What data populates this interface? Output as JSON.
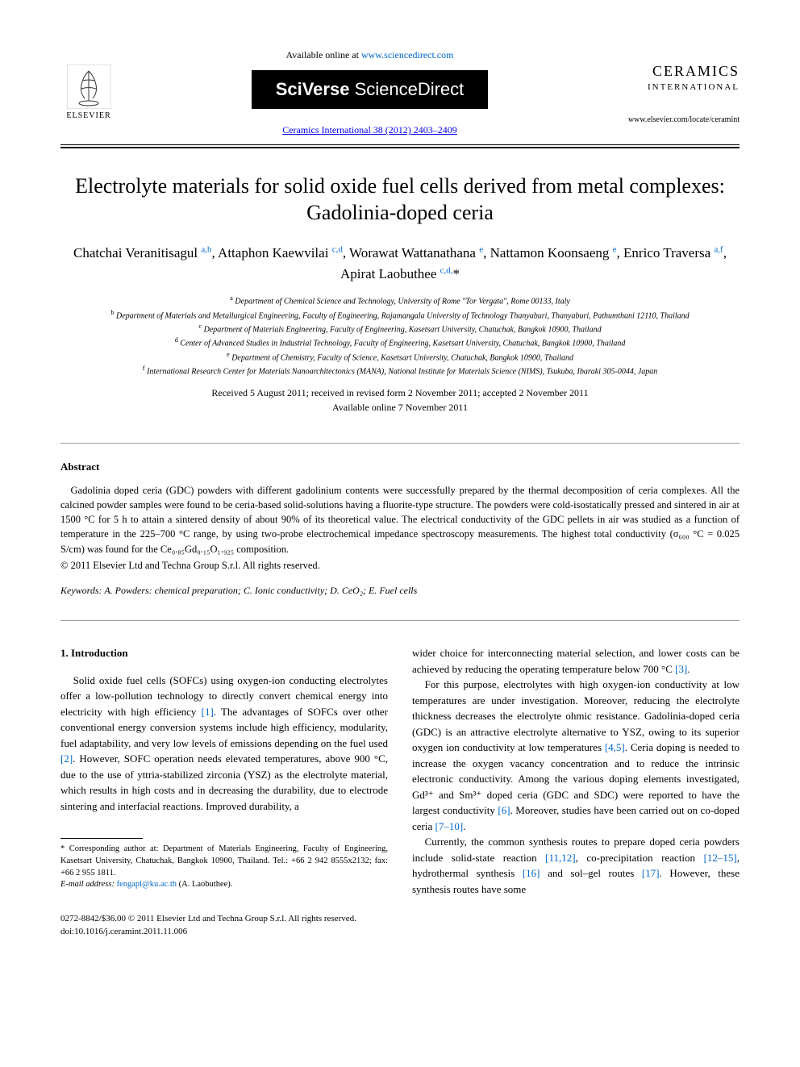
{
  "header": {
    "available_text": "Available online at ",
    "available_url": "www.sciencedirect.com",
    "platform_bold": "SciVerse",
    "platform_light": " ScienceDirect",
    "journal_ref": "Ceramics International 38 (2012) 2403–2409",
    "publisher_name": "ELSEVIER",
    "journal_name": "CERAMICS",
    "journal_subtitle": "INTERNATIONAL",
    "journal_url": "www.elsevier.com/locate/ceramint"
  },
  "title": "Electrolyte materials for solid oxide fuel cells derived from metal complexes: Gadolinia-doped ceria",
  "authors_html": "Chatchai Veranitisagul <sup>a,b</sup>, Attaphon Kaewvilai <sup>c,d</sup>, Worawat Wattanathana <sup>e</sup>, Nattamon Koonsaeng <sup>e</sup>, Enrico Traversa <sup>a,f</sup>, Apirat Laobuthee <sup>c,d,</sup>*",
  "affiliations": [
    {
      "sup": "a",
      "text": "Department of Chemical Science and Technology, University of Rome \"Tor Vergata\", Rome 00133, Italy"
    },
    {
      "sup": "b",
      "text": "Department of Materials and Metallurgical Engineering, Faculty of Engineering, Rajamangala University of Technology Thanyaburi, Thanyaburi, Pathumthani 12110, Thailand"
    },
    {
      "sup": "c",
      "text": "Department of Materials Engineering, Faculty of Engineering, Kasetsart University, Chatuchak, Bangkok 10900, Thailand"
    },
    {
      "sup": "d",
      "text": "Center of Advanced Studies in Industrial Technology, Faculty of Engineering, Kasetsart University, Chatuchak, Bangkok 10900, Thailand"
    },
    {
      "sup": "e",
      "text": "Department of Chemistry, Faculty of Science, Kasetsart University, Chatuchak, Bangkok 10900, Thailand"
    },
    {
      "sup": "f",
      "text": "International Research Center for Materials Nanoarchitectonics (MANA), National Institute for Materials Science (NIMS), Tsukuba, Ibaraki 305-0044, Japan"
    }
  ],
  "dates": {
    "received": "Received 5 August 2011; received in revised form 2 November 2011; accepted 2 November 2011",
    "online": "Available online 7 November 2011"
  },
  "abstract": {
    "heading": "Abstract",
    "body": "Gadolinia doped ceria (GDC) powders with different gadolinium contents were successfully prepared by the thermal decomposition of ceria complexes. All the calcined powder samples were found to be ceria-based solid-solutions having a fluorite-type structure. The powders were cold-isostatically pressed and sintered in air at 1500 °C for 5 h to attain a sintered density of about 90% of its theoretical value. The electrical conductivity of the GDC pellets in air was studied as a function of temperature in the 225–700 °C range, by using two-probe electrochemical impedance spectroscopy measurements. The highest total conductivity (σ₆₀₀ °C = 0.025 S/cm) was found for the Ce₀.₈₅Gd₀.₁₅O₁.₉₂₅ composition.",
    "copyright": "© 2011 Elsevier Ltd and Techna Group S.r.l. All rights reserved."
  },
  "keywords": {
    "label": "Keywords:",
    "text": " A. Powders: chemical preparation; C. Ionic conductivity; D. CeO₂; E. Fuel cells"
  },
  "section1": {
    "heading": "1. Introduction",
    "para1_pre": "Solid oxide fuel cells (SOFCs) using oxygen-ion conducting electrolytes offer a low-pollution technology to directly convert chemical energy into electricity with high efficiency ",
    "ref1": "[1]",
    "para1_mid": ". The advantages of SOFCs over other conventional energy conversion systems include high efficiency, modularity, fuel adaptability, and very low levels of emissions depending on the fuel used ",
    "ref2": "[2]",
    "para1_post": ". However, SOFC operation needs elevated temperatures, above 900 °C, due to the use of yttria-stabilized zirconia (YSZ) as the electrolyte material, which results in high costs and in decreasing the durability, due to electrode sintering and interfacial reactions. Improved durability, a",
    "col2_cont": "wider choice for interconnecting material selection, and lower costs can be achieved by reducing the operating temperature below 700 °C ",
    "ref3": "[3]",
    "col2_cont2": ".",
    "para2_pre": "For this purpose, electrolytes with high oxygen-ion conductivity at low temperatures are under investigation. Moreover, reducing the electrolyte thickness decreases the electrolyte ohmic resistance. Gadolinia-doped ceria (GDC) is an attractive electrolyte alternative to YSZ, owing to its superior oxygen ion conductivity at low temperatures ",
    "ref45": "[4,5]",
    "para2_mid": ". Ceria doping is needed to increase the oxygen vacancy concentration and to reduce the intrinsic electronic conductivity. Among the various doping elements investigated, Gd³⁺ and Sm³⁺ doped ceria (GDC and SDC) were reported to have the largest conductivity ",
    "ref6": "[6]",
    "para2_mid2": ". Moreover, studies have been carried out on co-doped ceria ",
    "ref710": "[7–10]",
    "para2_post": ".",
    "para3_pre": "Currently, the common synthesis routes to prepare doped ceria powders include solid-state reaction ",
    "ref1112": "[11,12]",
    "para3_mid1": ", co-precipitation reaction ",
    "ref1215": "[12–15]",
    "para3_mid2": ", hydrothermal synthesis ",
    "ref16": "[16]",
    "para3_mid3": " and sol–gel routes ",
    "ref17": "[17]",
    "para3_post": ". However, these synthesis routes have some"
  },
  "footnote": {
    "corr": "* Corresponding author at: Department of Materials Engineering, Faculty of Engineering, Kasetsart University, Chatuchak, Bangkok 10900, Thailand. Tel.: +66 2 942 8555x2132; fax: +66 2 955 1811.",
    "email_label": "E-mail address: ",
    "email": "fengapl@ku.ac.th",
    "email_who": " (A. Laobuthee)."
  },
  "footer": {
    "line1": "0272-8842/$36.00 © 2011 Elsevier Ltd and Techna Group S.r.l. All rights reserved.",
    "line2": "doi:10.1016/j.ceramint.2011.11.006"
  },
  "colors": {
    "link": "#0066cc",
    "text": "#000000",
    "bg": "#ffffff"
  }
}
